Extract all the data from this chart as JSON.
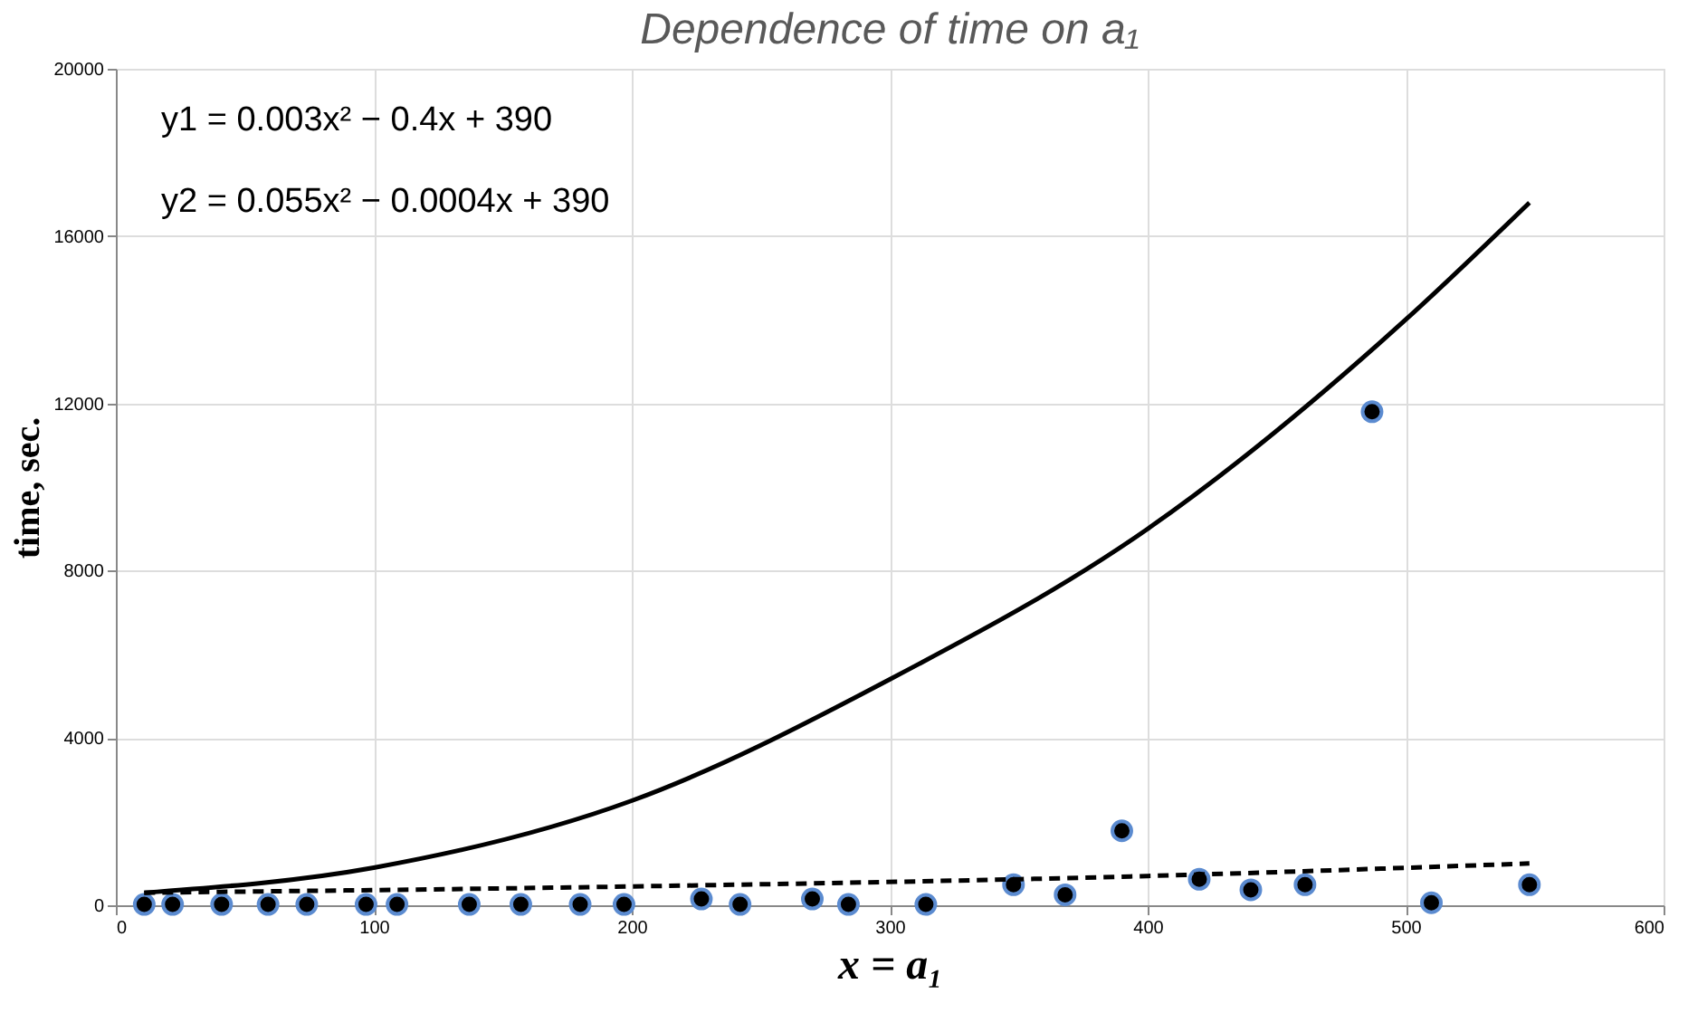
{
  "chart_data": {
    "type": "scatter",
    "title": "Dependence of time on a₁",
    "xlabel": "x = a₁",
    "ylabel": "time, sec.",
    "xlim": [
      0,
      600
    ],
    "xticks": [
      0,
      100,
      200,
      300,
      400,
      500,
      600
    ],
    "ylim": [
      0,
      20000
    ],
    "yticks": [
      0,
      4000,
      8000,
      12000,
      16000,
      20000
    ],
    "grid": true,
    "marker": "circle",
    "annotations": [
      "y1 = 0.003x² − 0.4x + 390",
      "y2 = 0.055x² − 0.0004x + 390"
    ],
    "series": [
      {
        "color": "#000000",
        "x": [
          11,
          22,
          41,
          59,
          74,
          97,
          109,
          137,
          157,
          180,
          197,
          227,
          242,
          270,
          284,
          314,
          348,
          368,
          390,
          420,
          440,
          461,
          487,
          510,
          548
        ],
        "values": [
          20,
          20,
          20,
          20,
          20,
          20,
          20,
          20,
          20,
          20,
          20,
          150,
          20,
          150,
          20,
          20,
          490,
          250,
          1780,
          620,
          370,
          490,
          11800,
          60,
          490
        ]
      },
      {
        "type": "line",
        "color": "#000000",
        "line_style": "solid",
        "marker": "none",
        "x": [
          11,
          100,
          200,
          300,
          400,
          500,
          548
        ],
        "values": [
          300,
          900,
          2500,
          5400,
          9000,
          14000,
          16800
        ]
      },
      {
        "type": "line",
        "color": "#000000",
        "line_style": "dashed",
        "marker": "none",
        "x": [
          11,
          200,
          400,
          548
        ],
        "values": [
          300,
          450,
          700,
          1000
        ]
      }
    ]
  }
}
